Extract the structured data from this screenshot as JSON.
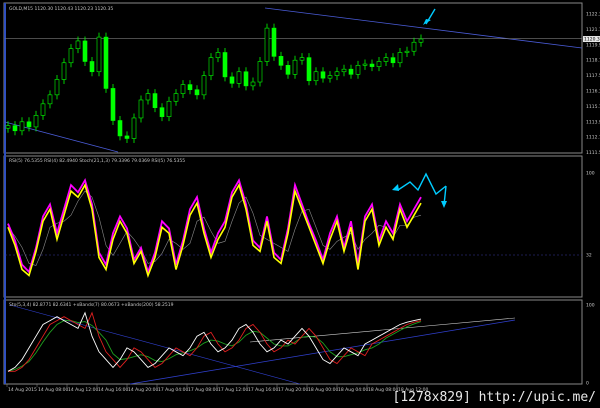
{
  "chart_data": [
    {
      "type": "candlestick",
      "title": "GOLD,M15  1120.30 1120.43 1120.23 1120.35",
      "symbol": "GOLD,M15",
      "ohlc_header": "1120.30 1120.43 1120.23 1120.35",
      "current_price": 1120.35,
      "ylim": [
        1111.5,
        1123.0
      ],
      "y_ticks": [
        "1122.30",
        "1121.10",
        "1119.90",
        "1118.70",
        "1117.50",
        "1116.30",
        "1115.10",
        "1113.90",
        "1112.70",
        "1111.50"
      ],
      "y_tick_values": [
        1122.3,
        1121.1,
        1119.9,
        1118.7,
        1117.5,
        1116.3,
        1115.1,
        1113.9,
        1112.7,
        1111.5
      ],
      "close": [
        1113.6,
        1113.2,
        1113.9,
        1113.5,
        1114.4,
        1115.3,
        1116.0,
        1117.2,
        1118.5,
        1119.6,
        1120.2,
        1118.6,
        1117.8,
        1120.5,
        1116.5,
        1114.0,
        1112.8,
        1112.6,
        1114.2,
        1115.6,
        1116.1,
        1115.0,
        1114.3,
        1115.5,
        1116.1,
        1116.8,
        1116.4,
        1116.0,
        1117.5,
        1118.9,
        1119.3,
        1117.4,
        1116.9,
        1117.8,
        1116.7,
        1117.0,
        1118.6,
        1121.2,
        1119.0,
        1118.3,
        1117.6,
        1118.7,
        1118.9,
        1117.1,
        1117.8,
        1117.3,
        1117.5,
        1117.8,
        1118.0,
        1117.6,
        1118.3,
        1118.4,
        1118.2,
        1118.6,
        1118.9,
        1118.5,
        1119.3,
        1119.4,
        1120.1,
        1120.35
      ],
      "colors": {
        "bull": "#00ff00",
        "bear": "#00ff00",
        "grid": "#808080"
      }
    },
    {
      "type": "line",
      "title": "RSI(5) 76.5355  RSI(4) 82.4940  Stoch(21,1,3) 79.3396 79.0369  RSI(5) 76.5355",
      "ylim": [
        0,
        100
      ],
      "y_ticks": [
        "100",
        "32"
      ],
      "y_tick_values": [
        100,
        32
      ],
      "series": [
        {
          "color": "#ff00ff",
          "values": [
            58,
            44,
            24,
            18,
            38,
            64,
            74,
            50,
            70,
            90,
            84,
            94,
            74,
            34,
            24,
            50,
            64,
            54,
            28,
            38,
            18,
            34,
            60,
            54,
            24,
            44,
            70,
            80,
            54,
            34,
            50,
            60,
            84,
            94,
            74,
            44,
            38,
            64,
            34,
            28,
            54,
            90,
            74,
            58,
            44,
            28,
            50,
            64,
            38,
            60,
            24,
            64,
            74,
            44,
            60,
            50,
            74,
            60,
            70,
            80
          ]
        },
        {
          "color": "#ffff00",
          "values": [
            55,
            40,
            20,
            15,
            35,
            60,
            70,
            45,
            65,
            85,
            80,
            90,
            70,
            30,
            20,
            45,
            60,
            50,
            25,
            35,
            15,
            30,
            55,
            50,
            20,
            40,
            65,
            75,
            50,
            30,
            45,
            55,
            80,
            90,
            70,
            40,
            35,
            60,
            30,
            25,
            50,
            85,
            70,
            55,
            40,
            25,
            45,
            60,
            35,
            55,
            20,
            60,
            70,
            40,
            55,
            45,
            70,
            55,
            65,
            75
          ]
        }
      ],
      "forecast_color": "#00ccff"
    },
    {
      "type": "line",
      "title": "Sto(5,3,4) 82.8771 82.6341  +xBands(7) 80.0673  +xBands(200) 58.2519",
      "ylim": [
        0,
        100
      ],
      "y_ticks": [
        "100",
        "0"
      ],
      "y_tick_values": [
        100,
        0
      ],
      "series": [
        {
          "color": "#ffffff",
          "values": [
            15,
            20,
            30,
            45,
            60,
            75,
            80,
            85,
            80,
            75,
            70,
            90,
            60,
            40,
            30,
            20,
            30,
            45,
            40,
            30,
            20,
            25,
            35,
            45,
            40,
            35,
            45,
            60,
            65,
            50,
            40,
            45,
            55,
            70,
            75,
            65,
            50,
            40,
            45,
            55,
            50,
            60,
            70,
            60,
            45,
            30,
            25,
            35,
            45,
            40,
            35,
            50,
            55,
            60,
            65,
            70,
            75,
            78,
            80,
            82
          ]
        }
      ]
    }
  ],
  "x_ticks": [
    "14 Aug 2015",
    "14 Aug 08:00",
    "14 Aug 12:00",
    "14 Aug 16:00",
    "14 Aug 20:00",
    "17 Aug 04:00",
    "17 Aug 08:00",
    "17 Aug 12:00",
    "17 Aug 16:00",
    "17 Aug 20:00",
    "18 Aug 00:00",
    "18 Aug 04:00",
    "18 Aug 08:00",
    "18 Aug 12:00"
  ],
  "watermark": "[1278x829] http://upic.me/"
}
